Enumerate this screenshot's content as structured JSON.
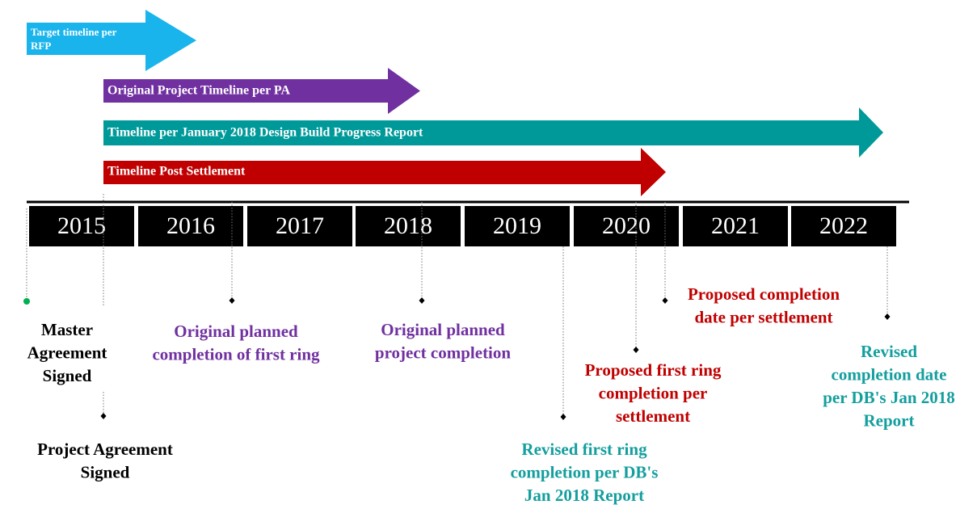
{
  "arrows": [
    {
      "lines": [
        "Target timeline per",
        "RFP"
      ]
    },
    {
      "lines": [
        "Original Project Timeline per PA"
      ]
    },
    {
      "lines": [
        "Timeline per January 2018 Design Build Progress Report"
      ]
    },
    {
      "lines": [
        "Timeline Post Settlement"
      ]
    }
  ],
  "years": [
    "2015",
    "2016",
    "2017",
    "2018",
    "2019",
    "2020",
    "2021",
    "2022"
  ],
  "milestones": [
    {
      "lines": [
        "Master",
        "Agreement",
        "Signed"
      ]
    },
    {
      "lines": [
        "Project Agreement",
        "Signed"
      ]
    },
    {
      "lines": [
        "Original planned",
        "completion of first ring"
      ]
    },
    {
      "lines": [
        "Original planned",
        "project completion"
      ]
    },
    {
      "lines": [
        "Revised first ring",
        "completion per DB's",
        "Jan 2018 Report"
      ]
    },
    {
      "lines": [
        "Proposed first ring",
        "completion per",
        "settlement"
      ]
    },
    {
      "lines": [
        "Proposed completion",
        "date per settlement"
      ]
    },
    {
      "lines": [
        "Revised",
        "completion date",
        "per DB's Jan 2018",
        "Report"
      ]
    }
  ]
}
